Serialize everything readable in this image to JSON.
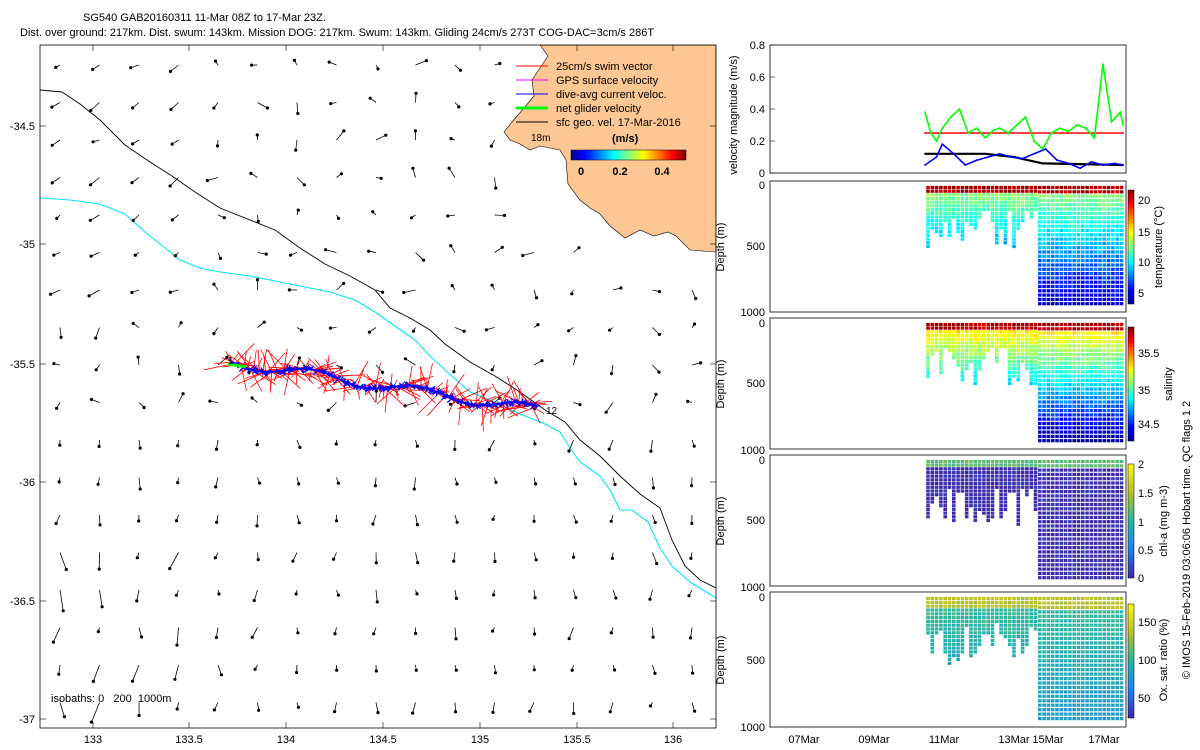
{
  "title": {
    "line1": "SG540 GAB20160311 11-Mar 08Z to 17-Mar 23Z.",
    "line2": "Dist. over ground: 217km. Dist. swum: 143km. Mission DOG: 217km. Swum: 143km. Gliding 24cm/s 273T COG-DAC=3cm/s 286T"
  },
  "map": {
    "x_ticks": [
      "133",
      "133.5",
      "134",
      "134.5",
      "135",
      "135.5",
      "136"
    ],
    "y_ticks": [
      "-34.5",
      "-35",
      "-35.5",
      "-36",
      "-36.5",
      "-37"
    ],
    "legend": [
      {
        "label": "25cm/s swim vector",
        "color": "#ff0000"
      },
      {
        "label": "GPS surface velocity",
        "color": "#ff00ff"
      },
      {
        "label": "dive-avg current veloc.",
        "color": "#0000ff"
      },
      {
        "label": "net glider velocity",
        "color": "#00ff00"
      },
      {
        "label": "sfc geo. vel. 17-Mar-2016",
        "color": "#000000"
      }
    ],
    "colorbar_label": "(m/s)",
    "colorbar_ticks": [
      "0",
      "0.2",
      "0.4"
    ],
    "isobath_label": "isobaths: 0   200  1000m",
    "start_label": "1",
    "end_label": "12",
    "place_label": "18m"
  },
  "chart_data": [
    {
      "type": "line",
      "title": "",
      "ylabel": "velocity magnitude (m/s)",
      "ylim": [
        0,
        0.8
      ],
      "y_ticks": [
        "0.8",
        "0.6",
        "0.4",
        "0.2",
        "0"
      ],
      "x_ticks": [
        "07Mar",
        "09Mar",
        "11Mar",
        "13Mar",
        "15Mar",
        "17Mar"
      ],
      "series": [
        {
          "color": "#ff0000",
          "x": [
            11.4,
            18.3
          ],
          "values": [
            0.25,
            0.25
          ]
        },
        {
          "color": "#000000",
          "x": [
            11.4,
            13.5,
            14.5,
            15.5,
            18.3
          ],
          "values": [
            0.12,
            0.12,
            0.1,
            0.06,
            0.05
          ]
        },
        {
          "color": "#0000ff",
          "x": [
            11.4,
            11.8,
            12.0,
            12.4,
            12.8,
            13.2,
            13.6,
            14.0,
            14.4,
            14.8,
            15.2,
            15.6,
            16.0,
            16.4,
            16.8,
            17.2,
            17.6,
            18.0,
            18.3
          ],
          "values": [
            0.05,
            0.1,
            0.18,
            0.12,
            0.05,
            0.08,
            0.1,
            0.12,
            0.1,
            0.09,
            0.12,
            0.15,
            0.08,
            0.06,
            0.03,
            0.07,
            0.05,
            0.06,
            0.05
          ]
        },
        {
          "color": "#00ff00",
          "x": [
            11.4,
            11.6,
            11.8,
            12.0,
            12.3,
            12.6,
            12.9,
            13.2,
            13.5,
            13.8,
            14.0,
            14.3,
            14.6,
            14.9,
            15.2,
            15.5,
            15.8,
            16.1,
            16.4,
            16.7,
            17.0,
            17.3,
            17.6,
            17.9,
            18.2,
            18.3
          ],
          "values": [
            0.38,
            0.25,
            0.2,
            0.28,
            0.35,
            0.4,
            0.25,
            0.28,
            0.22,
            0.27,
            0.28,
            0.25,
            0.3,
            0.35,
            0.2,
            0.15,
            0.25,
            0.28,
            0.26,
            0.3,
            0.28,
            0.22,
            0.68,
            0.32,
            0.38,
            0.3
          ]
        }
      ]
    },
    {
      "type": "scatter",
      "title": "",
      "ylabel": "Depth (m)",
      "colorbar_label": "temperature (°C)",
      "colorbar_ticks": [
        "20",
        "15",
        "10",
        "5"
      ],
      "y_ticks": [
        "0",
        "500",
        "1000"
      ],
      "ylim": [
        1000,
        0
      ]
    },
    {
      "type": "scatter",
      "title": "",
      "ylabel": "Depth (m)",
      "colorbar_label": "salinity",
      "colorbar_ticks": [
        "35.5",
        "35",
        "34.5"
      ],
      "y_ticks": [
        "0",
        "500",
        "1000"
      ],
      "ylim": [
        1000,
        0
      ]
    },
    {
      "type": "scatter",
      "title": "",
      "ylabel": "Depth (m)",
      "colorbar_label": "chl-a (mg m-3)",
      "colorbar_ticks": [
        "2",
        "1.5",
        "1",
        "0.5",
        "0"
      ],
      "y_ticks": [
        "0",
        "500",
        "1000"
      ],
      "ylim": [
        1000,
        0
      ]
    },
    {
      "type": "scatter",
      "title": "",
      "ylabel": "Depth (m)",
      "colorbar_label": "Ox. sat. ratio (%)",
      "colorbar_ticks": [
        "150",
        "100",
        "50"
      ],
      "y_ticks": [
        "0",
        "500",
        "1000"
      ],
      "ylim": [
        1000,
        0
      ]
    }
  ],
  "side_note": "© IMOS 15-Feb-2019 03:06:06 Hobart time. QC flags 1  2"
}
